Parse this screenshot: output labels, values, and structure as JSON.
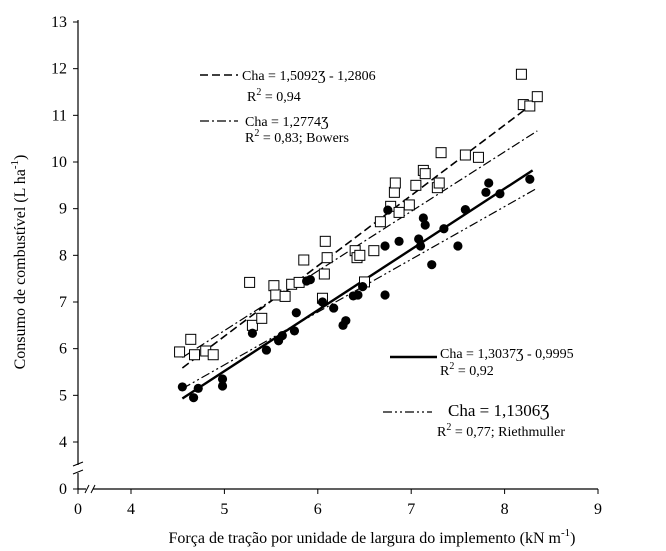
{
  "chart_data": {
    "type": "scatter",
    "xlabel": "Força de tração por unidade de largura do implemento (kN m",
    "xlabel_sup": "-1",
    "xlabel_end": ")",
    "ylabel": "Consumo de combustível (L ha",
    "ylabel_sup": "-1",
    "ylabel_end": ")",
    "xlim": [
      0,
      9
    ],
    "ylim": [
      0,
      13
    ],
    "axis_break": true,
    "x_ticks": [
      "0",
      "4",
      "5",
      "6",
      "7",
      "8",
      "9"
    ],
    "y_ticks": [
      "0",
      "4",
      "5",
      "6",
      "7",
      "8",
      "9",
      "10",
      "11",
      "12",
      "13"
    ],
    "grid": false,
    "series": [
      {
        "marker": "open-square",
        "points": [
          [
            4.52,
            5.93
          ],
          [
            4.64,
            6.2
          ],
          [
            4.68,
            5.87
          ],
          [
            4.8,
            5.95
          ],
          [
            4.88,
            5.87
          ],
          [
            5.27,
            7.42
          ],
          [
            5.3,
            6.5
          ],
          [
            5.4,
            6.65
          ],
          [
            5.53,
            7.35
          ],
          [
            5.55,
            7.15
          ],
          [
            5.65,
            7.12
          ],
          [
            5.72,
            7.38
          ],
          [
            5.8,
            7.42
          ],
          [
            5.85,
            7.9
          ],
          [
            6.05,
            7.08
          ],
          [
            6.07,
            7.6
          ],
          [
            6.08,
            8.3
          ],
          [
            6.1,
            7.95
          ],
          [
            6.4,
            8.1
          ],
          [
            6.42,
            7.95
          ],
          [
            6.45,
            8.0
          ],
          [
            6.5,
            7.43
          ],
          [
            6.6,
            8.1
          ],
          [
            6.67,
            8.72
          ],
          [
            6.78,
            9.05
          ],
          [
            6.82,
            9.35
          ],
          [
            6.83,
            9.55
          ],
          [
            6.87,
            8.92
          ],
          [
            6.98,
            9.08
          ],
          [
            7.05,
            9.5
          ],
          [
            7.13,
            9.82
          ],
          [
            7.15,
            9.75
          ],
          [
            7.28,
            9.45
          ],
          [
            7.3,
            9.55
          ],
          [
            7.32,
            10.2
          ],
          [
            7.58,
            10.15
          ],
          [
            7.72,
            10.1
          ],
          [
            8.18,
            11.88
          ],
          [
            8.2,
            11.23
          ],
          [
            8.27,
            11.2
          ],
          [
            8.35,
            11.4
          ]
        ]
      },
      {
        "marker": "filled-circle",
        "points": [
          [
            4.55,
            5.18
          ],
          [
            4.67,
            4.95
          ],
          [
            4.72,
            5.15
          ],
          [
            4.98,
            5.35
          ],
          [
            4.98,
            5.2
          ],
          [
            5.3,
            6.33
          ],
          [
            5.45,
            5.97
          ],
          [
            5.58,
            6.17
          ],
          [
            5.62,
            6.28
          ],
          [
            5.75,
            6.38
          ],
          [
            5.77,
            6.77
          ],
          [
            5.88,
            7.45
          ],
          [
            5.92,
            7.48
          ],
          [
            6.05,
            7.0
          ],
          [
            6.17,
            6.87
          ],
          [
            6.27,
            6.5
          ],
          [
            6.3,
            6.6
          ],
          [
            6.38,
            7.13
          ],
          [
            6.43,
            7.15
          ],
          [
            6.48,
            7.33
          ],
          [
            6.72,
            8.2
          ],
          [
            6.72,
            7.15
          ],
          [
            6.75,
            8.97
          ],
          [
            6.87,
            8.3
          ],
          [
            7.08,
            8.35
          ],
          [
            7.1,
            8.2
          ],
          [
            7.13,
            8.8
          ],
          [
            7.15,
            8.65
          ],
          [
            7.22,
            7.8
          ],
          [
            7.35,
            8.57
          ],
          [
            7.5,
            8.2
          ],
          [
            7.58,
            8.98
          ],
          [
            7.8,
            9.35
          ],
          [
            7.83,
            9.55
          ],
          [
            7.95,
            9.32
          ],
          [
            8.27,
            9.63
          ]
        ]
      }
    ],
    "lines": [
      {
        "style": "dashed",
        "slope": 1.5092,
        "intercept": -1.2806,
        "x_range": [
          4.55,
          8.35
        ]
      },
      {
        "style": "dash-dot",
        "slope": 1.2774,
        "intercept": 0,
        "x_range": [
          4.55,
          8.35
        ]
      },
      {
        "style": "solid",
        "slope": 1.3037,
        "intercept": -0.9995,
        "x_range": [
          4.55,
          8.3
        ]
      },
      {
        "style": "dash-dot-dot",
        "slope": 1.1306,
        "intercept": 0,
        "x_range": [
          4.55,
          8.35
        ]
      }
    ],
    "legend": [
      {
        "style": "dashed",
        "equation": "Cha = 1,5092Ʒ - 1,2806",
        "r2_prefix": "R",
        "r2_value": " = 0,94"
      },
      {
        "style": "dash-dot",
        "equation": "Cha = 1,2774Ʒ",
        "r2_prefix": "R",
        "r2_value": " = 0,83; Bowers"
      },
      {
        "style": "solid",
        "equation": "Cha = 1,3037Ʒ - 0,9995",
        "r2_prefix": "R",
        "r2_value": " = 0,92"
      },
      {
        "style": "dash-dot-dot",
        "equation": "Cha = 1,1306Ʒ",
        "r2_prefix": "R",
        "r2_value": " = 0,77; Riethmuller"
      }
    ]
  }
}
